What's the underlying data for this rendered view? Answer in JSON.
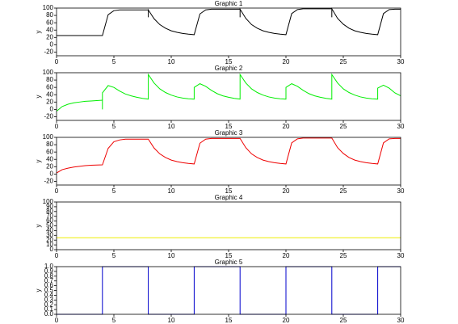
{
  "chart_data": [
    {
      "type": "line",
      "title": "Graphic 1",
      "y_label": "y",
      "x": [
        0,
        0.5,
        1,
        1.5,
        2,
        2.5,
        3,
        3.5,
        4,
        4.5,
        5,
        5.5,
        6,
        6.5,
        7,
        7.5,
        8,
        8,
        8,
        8.5,
        9,
        9.5,
        10,
        10.5,
        11,
        11.5,
        12,
        12.5,
        13,
        13.5,
        14,
        14.5,
        15,
        15.5,
        16,
        16,
        16,
        16.5,
        17,
        17.5,
        18,
        18.5,
        19,
        19.5,
        20,
        20.5,
        21,
        21.5,
        22,
        22.5,
        23,
        23.5,
        24,
        24,
        24,
        24.5,
        25,
        25.5,
        26,
        26.5,
        27,
        27.5,
        28,
        28.5,
        29,
        29.5,
        30
      ],
      "series": [
        {
          "color": "#000000",
          "values": [
            25,
            25,
            25,
            25,
            25,
            25,
            25,
            25,
            25,
            82,
            93,
            95,
            95,
            95,
            95,
            95,
            95,
            75,
            95,
            71,
            55,
            45,
            38,
            34,
            31,
            29,
            27.5,
            84,
            95,
            97,
            97,
            97,
            97,
            97,
            97,
            75,
            97,
            72,
            55,
            45,
            38,
            34,
            31,
            29,
            27.5,
            85,
            96,
            98,
            98,
            98,
            98,
            98,
            98,
            75,
            98,
            72,
            56,
            45,
            38,
            34,
            31,
            29,
            27.5,
            85,
            96,
            97,
            97
          ]
        }
      ],
      "xlim": [
        0,
        30
      ],
      "xticks": [
        0,
        5,
        10,
        15,
        20,
        25,
        30
      ],
      "ylim": [
        -30,
        100
      ],
      "yticks": [
        -20,
        0,
        20,
        40,
        60,
        80,
        100
      ]
    },
    {
      "type": "line",
      "title": "Graphic 2",
      "y_label": "y",
      "x": [
        0,
        0.5,
        1,
        1.5,
        2,
        2.5,
        3,
        3.5,
        4,
        4,
        4,
        4.5,
        5,
        5.5,
        6,
        6.5,
        7,
        7.5,
        8,
        8,
        8.5,
        9,
        9.5,
        10,
        10.5,
        11,
        11.5,
        12,
        12,
        12,
        12.5,
        13,
        13.5,
        14,
        14.5,
        15,
        15.5,
        16,
        16,
        16.5,
        17,
        17.5,
        18,
        18.5,
        19,
        19.5,
        20,
        20,
        20,
        20.5,
        21,
        21.5,
        22,
        22.5,
        23,
        23.5,
        24,
        24,
        24.5,
        25,
        25.5,
        26,
        26.5,
        27,
        27.5,
        28,
        28,
        28,
        28.5,
        29,
        29.5,
        30
      ],
      "series": [
        {
          "color": "#00ee00",
          "values": [
            -5,
            8,
            14,
            18,
            20,
            22,
            23,
            24,
            25,
            0,
            45,
            65,
            60,
            50,
            42,
            37,
            33,
            30,
            28,
            95,
            72,
            56,
            46,
            39,
            34,
            31,
            29,
            28,
            45,
            60,
            70,
            63,
            52,
            43,
            37,
            33,
            30,
            28,
            95,
            72,
            56,
            46,
            39,
            34,
            31,
            29,
            28,
            45,
            60,
            70,
            63,
            52,
            43,
            37,
            33,
            30,
            28,
            95,
            72,
            56,
            46,
            39,
            34,
            31,
            29,
            28,
            45,
            58,
            66,
            58,
            45,
            37
          ]
        }
      ],
      "xlim": [
        0,
        30
      ],
      "xticks": [
        0,
        5,
        10,
        15,
        20,
        25,
        30
      ],
      "ylim": [
        -30,
        100
      ],
      "yticks": [
        -20,
        0,
        20,
        40,
        60,
        80,
        100
      ]
    },
    {
      "type": "line",
      "title": "Graphic 3",
      "y_label": "y",
      "x": [
        0,
        0.5,
        1,
        1.5,
        2,
        2.5,
        3,
        3.5,
        4,
        4.5,
        5,
        5.5,
        6,
        6.5,
        7,
        7.5,
        8,
        8.5,
        9,
        9.5,
        10,
        10.5,
        11,
        11.5,
        12,
        12.5,
        13,
        13.5,
        14,
        14.5,
        15,
        15.5,
        16,
        16.5,
        17,
        17.5,
        18,
        18.5,
        19,
        19.5,
        20,
        20.5,
        21,
        21.5,
        22,
        22.5,
        23,
        23.5,
        24,
        24.5,
        25,
        25.5,
        26,
        26.5,
        27,
        27.5,
        28,
        28.5,
        29,
        29.5,
        30
      ],
      "series": [
        {
          "color": "#ee0000",
          "values": [
            3,
            12,
            16,
            19,
            21,
            23,
            24,
            24.5,
            25,
            70,
            88,
            93,
            95,
            95,
            95,
            95,
            95,
            71,
            55,
            45,
            38,
            34,
            31,
            29,
            27.5,
            84,
            95,
            97,
            97,
            97,
            97,
            97,
            97,
            72,
            55,
            45,
            38,
            34,
            31,
            29,
            27.5,
            85,
            96,
            98,
            98,
            98,
            98,
            98,
            98,
            72,
            56,
            45,
            38,
            34,
            31,
            29,
            27.5,
            85,
            96,
            97,
            97
          ]
        }
      ],
      "xlim": [
        0,
        30
      ],
      "xticks": [
        0,
        5,
        10,
        15,
        20,
        25,
        30
      ],
      "ylim": [
        -30,
        100
      ],
      "yticks": [
        -20,
        0,
        20,
        40,
        60,
        80,
        100
      ]
    },
    {
      "type": "line",
      "title": "Graphic 4",
      "y_label": "y",
      "x": [
        0,
        30
      ],
      "series": [
        {
          "color": "#eeee00",
          "values": [
            25,
            25
          ]
        }
      ],
      "xlim": [
        0,
        30
      ],
      "xticks": [
        0,
        5,
        10,
        15,
        20,
        25,
        30
      ],
      "ylim": [
        0,
        100
      ],
      "yticks": [
        0,
        10,
        20,
        30,
        40,
        50,
        60,
        70,
        80,
        90,
        100
      ]
    },
    {
      "type": "line",
      "title": "Graphic 5",
      "y_label": "y",
      "x": [
        0,
        4,
        4,
        8,
        8,
        12,
        12,
        16,
        16,
        20,
        20,
        24,
        24,
        28,
        28,
        30
      ],
      "series": [
        {
          "color": "#0000cc",
          "values": [
            0,
            0,
            1,
            1,
            0,
            0,
            1,
            1,
            0,
            0,
            1,
            1,
            0,
            0,
            1,
            1
          ]
        }
      ],
      "xlim": [
        0,
        30
      ],
      "xticks": [
        0,
        5,
        10,
        15,
        20,
        25,
        30
      ],
      "ylim": [
        0,
        1
      ],
      "yticks": [
        {
          "value": 0,
          "label": "0.0"
        },
        0.1,
        0.2,
        0.3,
        0.4,
        0.5,
        0.6,
        0.7,
        0.8,
        0.9,
        {
          "value": 1,
          "label": "1.0"
        }
      ]
    }
  ]
}
